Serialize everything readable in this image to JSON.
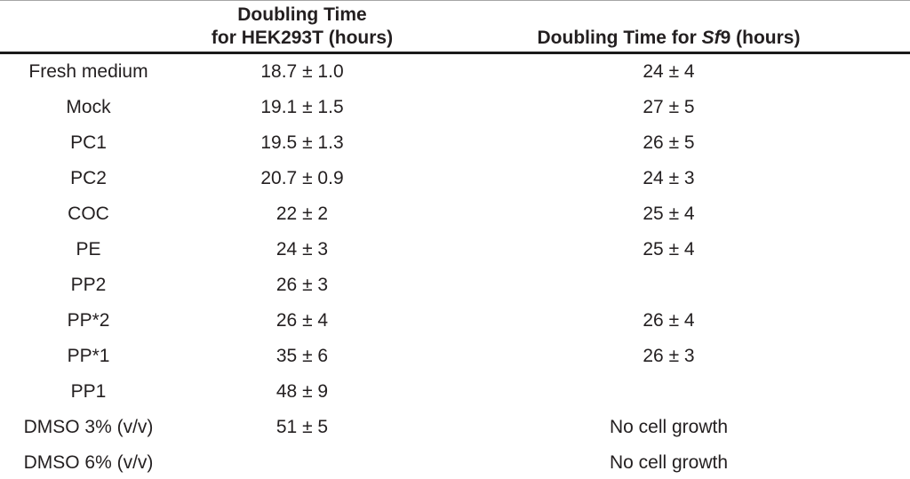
{
  "colors": {
    "text": "#231f20",
    "rule": "#1a1a1a",
    "top_rule": "#a6a6a6",
    "background": "#ffffff"
  },
  "table": {
    "header": {
      "hek_line1": "Doubling Time",
      "hek_line2": "for HEK293T (hours)",
      "sf9_prefix": "Doubling Time for ",
      "sf9_italic": "Sf",
      "sf9_suffix": "9 (hours)"
    },
    "rows": [
      {
        "label": "Fresh medium",
        "hek": "18.7 ± 1.0",
        "sf9": "24 ± 4"
      },
      {
        "label": "Mock",
        "hek": "19.1 ± 1.5",
        "sf9": "27 ± 5"
      },
      {
        "label": "PC1",
        "hek": "19.5 ± 1.3",
        "sf9": "26 ± 5"
      },
      {
        "label": "PC2",
        "hek": "20.7 ± 0.9",
        "sf9": "24 ± 3"
      },
      {
        "label": "COC",
        "hek": "22 ± 2",
        "sf9": "25 ± 4"
      },
      {
        "label": "PE",
        "hek": "24 ± 3",
        "sf9": "25 ± 4"
      },
      {
        "label": "PP2",
        "hek": "26 ± 3",
        "sf9": ""
      },
      {
        "label": "PP*2",
        "hek": "26 ± 4",
        "sf9": "26 ± 4"
      },
      {
        "label": "PP*1",
        "hek": "35 ± 6",
        "sf9": "26 ± 3"
      },
      {
        "label": "PP1",
        "hek": "48 ± 9",
        "sf9": ""
      },
      {
        "label": "DMSO 3% (v/v)",
        "hek": "51 ± 5",
        "sf9": "No cell growth"
      },
      {
        "label": "DMSO 6% (v/v)",
        "hek": "",
        "sf9": "No cell growth"
      }
    ]
  }
}
